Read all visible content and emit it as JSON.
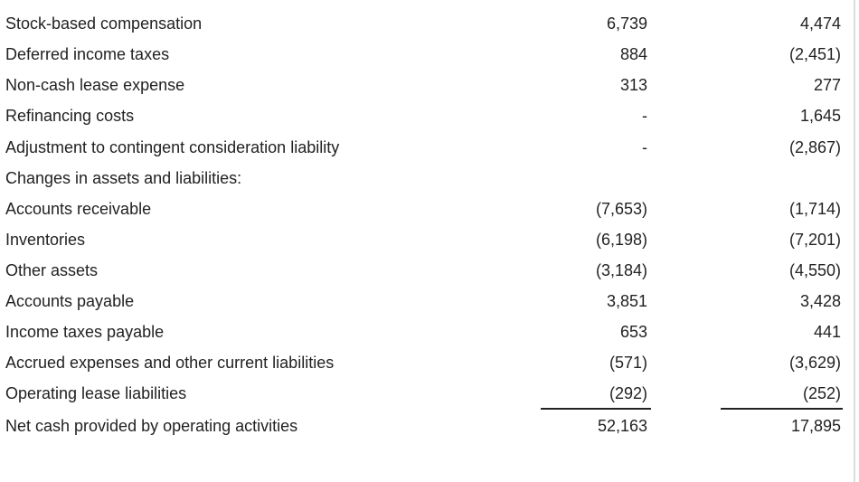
{
  "table": {
    "rows": [
      {
        "label": "Stock-based compensation",
        "values": [
          "6,739",
          "4,474"
        ]
      },
      {
        "label": "Deferred income taxes",
        "values": [
          "884",
          "(2,451)"
        ]
      },
      {
        "label": "Non-cash lease expense",
        "values": [
          "313",
          "277"
        ]
      },
      {
        "label": "Refinancing costs",
        "values": [
          "-",
          "1,645"
        ]
      },
      {
        "label": "Adjustment to contingent consideration liability",
        "values": [
          "-",
          "(2,867)"
        ]
      },
      {
        "label": "Changes in assets and liabilities:"
      },
      {
        "label": "Accounts receivable",
        "values": [
          "(7,653)",
          "(1,714)"
        ]
      },
      {
        "label": "Inventories",
        "values": [
          "(6,198)",
          "(7,201)"
        ]
      },
      {
        "label": "Other assets",
        "values": [
          "(3,184)",
          "(4,550)"
        ]
      },
      {
        "label": "Accounts payable",
        "values": [
          "3,851",
          "3,428"
        ]
      },
      {
        "label": "Income taxes payable",
        "values": [
          "653",
          "441"
        ]
      },
      {
        "label": "Accrued expenses and other current liabilities",
        "values": [
          "(571)",
          "(3,629)"
        ]
      },
      {
        "label": "Operating lease liabilities",
        "values": [
          "(292)",
          "(252)"
        ]
      },
      {
        "label": "Net cash provided by operating activities",
        "values": [
          "52,163",
          "17,895"
        ]
      }
    ]
  }
}
